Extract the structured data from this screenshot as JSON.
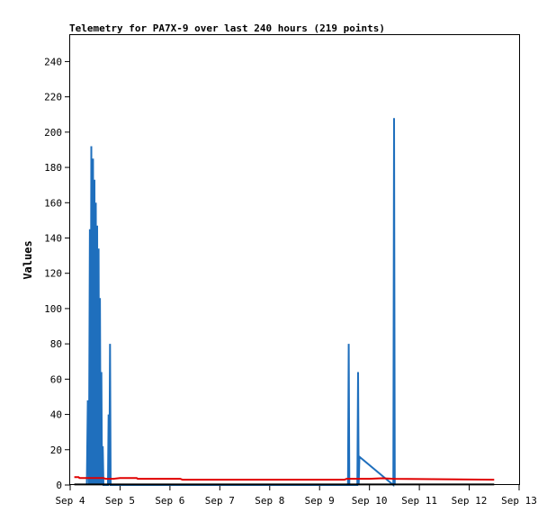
{
  "chart_data": {
    "type": "line",
    "title": "Telemetry for PA7X-9 over last 240 hours (219 points)",
    "xlabel": "",
    "ylabel": "Values",
    "xlim": [
      "2025-09-04 00:00",
      "2025-09-13 00:00"
    ],
    "ylim": [
      0,
      255
    ],
    "x_ticks": [
      "Sep 4",
      "Sep 5",
      "Sep 6",
      "Sep 7",
      "Sep 8",
      "Sep 9",
      "Sep 10",
      "Sep 11",
      "Sep 12",
      "Sep 13"
    ],
    "y_ticks": [
      0,
      20,
      40,
      60,
      80,
      100,
      120,
      140,
      160,
      180,
      200,
      220,
      240
    ],
    "grid": false,
    "legend": "none",
    "series": [
      {
        "color": "#1f6fbd",
        "points": [
          {
            "x": "2025-09-04 08:00",
            "y": 0
          },
          {
            "x": "2025-09-04 08:30",
            "y": 48
          },
          {
            "x": "2025-09-04 09:00",
            "y": 0
          },
          {
            "x": "2025-09-04 09:30",
            "y": 145
          },
          {
            "x": "2025-09-04 09:50",
            "y": 0
          },
          {
            "x": "2025-09-04 10:10",
            "y": 192
          },
          {
            "x": "2025-09-04 10:40",
            "y": 0
          },
          {
            "x": "2025-09-04 11:00",
            "y": 185
          },
          {
            "x": "2025-09-04 11:20",
            "y": 0
          },
          {
            "x": "2025-09-04 11:40",
            "y": 173
          },
          {
            "x": "2025-09-04 12:00",
            "y": 0
          },
          {
            "x": "2025-09-04 12:20",
            "y": 160
          },
          {
            "x": "2025-09-04 12:40",
            "y": 0
          },
          {
            "x": "2025-09-04 13:00",
            "y": 147
          },
          {
            "x": "2025-09-04 13:20",
            "y": 0
          },
          {
            "x": "2025-09-04 13:40",
            "y": 134
          },
          {
            "x": "2025-09-04 14:00",
            "y": 0
          },
          {
            "x": "2025-09-04 14:20",
            "y": 106
          },
          {
            "x": "2025-09-04 14:40",
            "y": 0
          },
          {
            "x": "2025-09-04 15:00",
            "y": 64
          },
          {
            "x": "2025-09-04 15:20",
            "y": 0
          },
          {
            "x": "2025-09-04 15:40",
            "y": 22
          },
          {
            "x": "2025-09-04 16:00",
            "y": 0
          },
          {
            "x": "2025-09-04 18:10",
            "y": 0
          },
          {
            "x": "2025-09-04 18:30",
            "y": 40
          },
          {
            "x": "2025-09-04 18:50",
            "y": 0
          },
          {
            "x": "2025-09-04 19:10",
            "y": 80
          },
          {
            "x": "2025-09-04 19:30",
            "y": 0
          },
          {
            "x": "2025-09-09 13:40",
            "y": 0
          },
          {
            "x": "2025-09-09 14:00",
            "y": 80
          },
          {
            "x": "2025-09-09 14:20",
            "y": 0
          },
          {
            "x": "2025-09-09 18:10",
            "y": 0
          },
          {
            "x": "2025-09-09 18:30",
            "y": 64
          },
          {
            "x": "2025-09-09 18:50",
            "y": 0
          },
          {
            "x": "2025-09-09 19:10",
            "y": 16
          },
          {
            "x": "2025-09-10 11:30",
            "y": 0
          },
          {
            "x": "2025-09-10 11:50",
            "y": 208
          },
          {
            "x": "2025-09-10 12:10",
            "y": 0
          }
        ]
      },
      {
        "color": "#e00000",
        "points": [
          {
            "x": "2025-09-04 02:00",
            "y": 4.5
          },
          {
            "x": "2025-09-04 04:00",
            "y": 4.5
          },
          {
            "x": "2025-09-04 04:30",
            "y": 4.0
          },
          {
            "x": "2025-09-04 16:00",
            "y": 4.0
          },
          {
            "x": "2025-09-04 17:00",
            "y": 3.5
          },
          {
            "x": "2025-09-04 21:00",
            "y": 3.5
          },
          {
            "x": "2025-09-05 00:00",
            "y": 4.0
          },
          {
            "x": "2025-09-05 08:00",
            "y": 4.0
          },
          {
            "x": "2025-09-05 08:30",
            "y": 3.5
          },
          {
            "x": "2025-09-06 05:00",
            "y": 3.5
          },
          {
            "x": "2025-09-06 06:00",
            "y": 3.0
          },
          {
            "x": "2025-09-09 12:00",
            "y": 3.0
          },
          {
            "x": "2025-09-09 13:00",
            "y": 3.5
          },
          {
            "x": "2025-09-10 00:00",
            "y": 3.5
          },
          {
            "x": "2025-09-10 06:00",
            "y": 3.8
          },
          {
            "x": "2025-09-10 12:00",
            "y": 3.5
          },
          {
            "x": "2025-09-12 12:00",
            "y": 3.0
          }
        ]
      },
      {
        "color": "#000000",
        "points": [
          {
            "x": "2025-09-04 02:00",
            "y": 0.3
          },
          {
            "x": "2025-09-12 12:00",
            "y": 0.3
          }
        ]
      }
    ]
  }
}
